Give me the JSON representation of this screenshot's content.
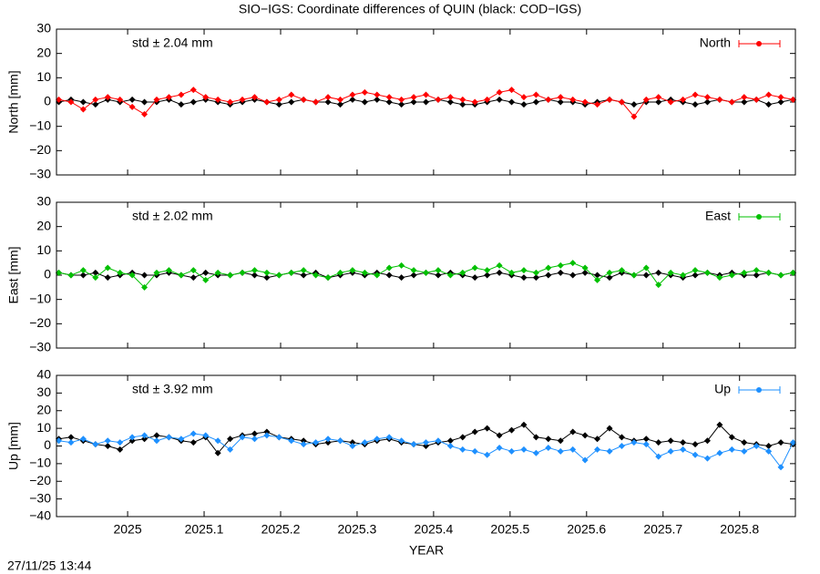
{
  "timestamp": "27/11/25 13:44",
  "chart_data": [
    {
      "type": "line",
      "title": "SIO−IGS: Coordinate differences of QUIN (black: COD−IGS)",
      "ylabel": "North [mm]",
      "annotation": "std ± 2.04 mm",
      "legend": "top right",
      "xlim": [
        2024.907,
        2025.873
      ],
      "ylim": [
        -30,
        30
      ],
      "yticks": [
        {
          "value": -30,
          "label": "−30"
        },
        {
          "value": -20,
          "label": "−20"
        },
        {
          "value": -10,
          "label": "−10"
        },
        0,
        10,
        20,
        30
      ],
      "x": [
        2024.91,
        2024.926,
        2024.942,
        2024.958,
        2024.974,
        2024.99,
        2025.006,
        2025.022,
        2025.038,
        2025.054,
        2025.07,
        2025.086,
        2025.102,
        2025.118,
        2025.134,
        2025.15,
        2025.166,
        2025.182,
        2025.198,
        2025.214,
        2025.23,
        2025.246,
        2025.262,
        2025.278,
        2025.294,
        2025.31,
        2025.326,
        2025.342,
        2025.358,
        2025.374,
        2025.39,
        2025.406,
        2025.422,
        2025.438,
        2025.454,
        2025.47,
        2025.486,
        2025.502,
        2025.518,
        2025.534,
        2025.55,
        2025.566,
        2025.582,
        2025.598,
        2025.614,
        2025.63,
        2025.646,
        2025.662,
        2025.678,
        2025.694,
        2025.71,
        2025.726,
        2025.742,
        2025.758,
        2025.774,
        2025.79,
        2025.806,
        2025.822,
        2025.838,
        2025.854,
        2025.87
      ],
      "series": [
        {
          "name": "North",
          "color": "#ff0000",
          "values": [
            1,
            0,
            -3,
            1,
            2,
            1,
            -2,
            -5,
            1,
            2,
            3,
            5,
            2,
            1,
            0,
            1,
            2,
            0,
            1,
            3,
            1,
            0,
            2,
            1,
            3,
            4,
            3,
            2,
            1,
            2,
            3,
            1,
            2,
            1,
            0,
            1,
            4,
            5,
            2,
            3,
            1,
            2,
            1,
            0,
            -1,
            1,
            0,
            -6,
            1,
            2,
            0,
            1,
            3,
            2,
            1,
            0,
            2,
            1,
            3,
            2,
            1
          ]
        },
        {
          "color": "#000000",
          "values": [
            0,
            1,
            0,
            -1,
            1,
            0,
            1,
            0,
            0,
            1,
            -1,
            0,
            1,
            0,
            -1,
            0,
            1,
            0,
            -1,
            0,
            1,
            0,
            0,
            -1,
            1,
            0,
            1,
            0,
            -1,
            0,
            0,
            1,
            0,
            -1,
            -1,
            0,
            1,
            0,
            -1,
            0,
            1,
            0,
            0,
            -1,
            0,
            1,
            0,
            -1,
            0,
            0,
            1,
            0,
            -1,
            0,
            1,
            0,
            0,
            1,
            -1,
            0,
            1
          ]
        }
      ]
    },
    {
      "type": "line",
      "ylabel": "East [mm]",
      "annotation": "std ± 2.02 mm",
      "legend": "top right",
      "xlim": [
        2024.907,
        2025.873
      ],
      "ylim": [
        -30,
        30
      ],
      "yticks": [
        {
          "value": -30,
          "label": "−30"
        },
        {
          "value": -20,
          "label": "−20"
        },
        {
          "value": -10,
          "label": "−10"
        },
        0,
        10,
        20,
        30
      ],
      "x": [
        2024.91,
        2024.926,
        2024.942,
        2024.958,
        2024.974,
        2024.99,
        2025.006,
        2025.022,
        2025.038,
        2025.054,
        2025.07,
        2025.086,
        2025.102,
        2025.118,
        2025.134,
        2025.15,
        2025.166,
        2025.182,
        2025.198,
        2025.214,
        2025.23,
        2025.246,
        2025.262,
        2025.278,
        2025.294,
        2025.31,
        2025.326,
        2025.342,
        2025.358,
        2025.374,
        2025.39,
        2025.406,
        2025.422,
        2025.438,
        2025.454,
        2025.47,
        2025.486,
        2025.502,
        2025.518,
        2025.534,
        2025.55,
        2025.566,
        2025.582,
        2025.598,
        2025.614,
        2025.63,
        2025.646,
        2025.662,
        2025.678,
        2025.694,
        2025.71,
        2025.726,
        2025.742,
        2025.758,
        2025.774,
        2025.79,
        2025.806,
        2025.822,
        2025.838,
        2025.854,
        2025.87
      ],
      "series": [
        {
          "name": "East",
          "color": "#00c000",
          "values": [
            1,
            0,
            2,
            -1,
            3,
            1,
            0,
            -5,
            1,
            2,
            0,
            2,
            -2,
            1,
            0,
            1,
            2,
            1,
            0,
            1,
            2,
            0,
            -1,
            1,
            2,
            1,
            0,
            3,
            4,
            2,
            1,
            2,
            0,
            1,
            3,
            2,
            4,
            1,
            2,
            1,
            3,
            4,
            5,
            3,
            -2,
            1,
            2,
            0,
            3,
            -4,
            1,
            0,
            2,
            1,
            -1,
            0,
            1,
            2,
            1,
            0,
            1
          ]
        },
        {
          "color": "#000000",
          "values": [
            1,
            0,
            0,
            1,
            -1,
            0,
            1,
            0,
            0,
            1,
            0,
            -1,
            1,
            0,
            0,
            1,
            0,
            -1,
            0,
            1,
            0,
            1,
            -1,
            0,
            1,
            0,
            1,
            0,
            -1,
            0,
            1,
            0,
            1,
            0,
            -1,
            0,
            1,
            0,
            -1,
            -1,
            0,
            1,
            0,
            1,
            0,
            -1,
            1,
            0,
            0,
            1,
            0,
            -1,
            0,
            1,
            0,
            1,
            0,
            0,
            1,
            0,
            1
          ]
        }
      ]
    },
    {
      "type": "line",
      "ylabel": "Up [mm]",
      "xlabel": "YEAR",
      "annotation": "std ± 3.92 mm",
      "legend": "top right",
      "xlim": [
        2024.907,
        2025.873
      ],
      "ylim": [
        -40,
        40
      ],
      "yticks": [
        {
          "value": -40,
          "label": "−40"
        },
        {
          "value": -30,
          "label": "−30"
        },
        {
          "value": -20,
          "label": "−20"
        },
        {
          "value": -10,
          "label": "−10"
        },
        0,
        10,
        20,
        30,
        40
      ],
      "xticks": [
        2025,
        2025.1,
        2025.2,
        2025.3,
        2025.4,
        2025.5,
        2025.6,
        2025.7,
        2025.8
      ],
      "x": [
        2024.91,
        2024.926,
        2024.942,
        2024.958,
        2024.974,
        2024.99,
        2025.006,
        2025.022,
        2025.038,
        2025.054,
        2025.07,
        2025.086,
        2025.102,
        2025.118,
        2025.134,
        2025.15,
        2025.166,
        2025.182,
        2025.198,
        2025.214,
        2025.23,
        2025.246,
        2025.262,
        2025.278,
        2025.294,
        2025.31,
        2025.326,
        2025.342,
        2025.358,
        2025.374,
        2025.39,
        2025.406,
        2025.422,
        2025.438,
        2025.454,
        2025.47,
        2025.486,
        2025.502,
        2025.518,
        2025.534,
        2025.55,
        2025.566,
        2025.582,
        2025.598,
        2025.614,
        2025.63,
        2025.646,
        2025.662,
        2025.678,
        2025.694,
        2025.71,
        2025.726,
        2025.742,
        2025.758,
        2025.774,
        2025.79,
        2025.806,
        2025.822,
        2025.838,
        2025.854,
        2025.87
      ],
      "series": [
        {
          "name": "Up",
          "color": "#1e90ff",
          "values": [
            3,
            2,
            4,
            1,
            3,
            2,
            5,
            6,
            3,
            5,
            4,
            7,
            6,
            3,
            -2,
            5,
            4,
            6,
            5,
            3,
            1,
            2,
            4,
            3,
            0,
            2,
            4,
            5,
            3,
            1,
            2,
            3,
            0,
            -2,
            -3,
            -5,
            -1,
            -3,
            -2,
            -4,
            -1,
            -3,
            -2,
            -8,
            -2,
            -3,
            0,
            2,
            1,
            -6,
            -3,
            -2,
            -5,
            -7,
            -4,
            -2,
            -3,
            0,
            -3,
            -12,
            2
          ]
        },
        {
          "color": "#000000",
          "values": [
            4,
            5,
            3,
            1,
            0,
            -2,
            3,
            4,
            6,
            5,
            3,
            2,
            5,
            -4,
            4,
            6,
            7,
            8,
            5,
            4,
            3,
            1,
            2,
            3,
            2,
            1,
            3,
            4,
            2,
            1,
            0,
            2,
            3,
            5,
            8,
            10,
            6,
            9,
            12,
            5,
            4,
            3,
            8,
            6,
            4,
            10,
            5,
            3,
            4,
            2,
            3,
            2,
            1,
            3,
            12,
            5,
            2,
            1,
            0,
            2,
            1
          ]
        }
      ]
    }
  ]
}
